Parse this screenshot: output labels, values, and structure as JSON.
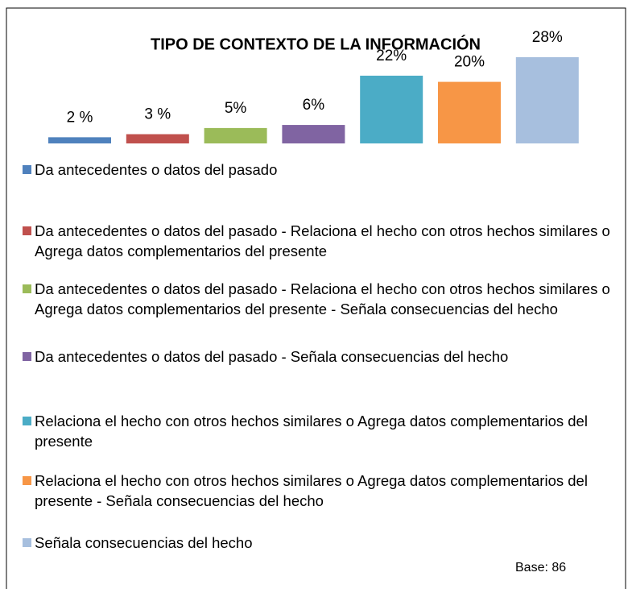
{
  "chart_data": {
    "type": "bar",
    "title": "TIPO DE CONTEXTO DE LA INFORMACIÓN",
    "categories": [
      "Da antecedentes o datos del pasado",
      "Da antecedentes o datos del pasado - Relaciona el hecho con otros hechos similares o Agrega datos complementarios del presente",
      "Da antecedentes o datos del pasado - Relaciona el hecho con otros hechos similares o Agrega datos complementarios del presente - Señala consecuencias del hecho",
      "Da antecedentes o datos del pasado - Señala consecuencias del hecho",
      "Relaciona el hecho con otros hechos similares o Agrega datos complementarios del presente",
      "Relaciona el hecho con otros hechos similares o Agrega datos complementarios del presente - Señala consecuencias del hecho",
      "Señala consecuencias del hecho"
    ],
    "values": [
      2,
      3,
      5,
      6,
      22,
      20,
      28
    ],
    "value_labels": [
      "2 %",
      "3 %",
      "5%",
      "6%",
      "22%",
      "20%",
      "28%"
    ],
    "colors": [
      "#4f81bd",
      "#c0504d",
      "#9bbb59",
      "#8064a2",
      "#4bacc6",
      "#f79646",
      "#a7bfde"
    ],
    "note": "Base: 86"
  }
}
